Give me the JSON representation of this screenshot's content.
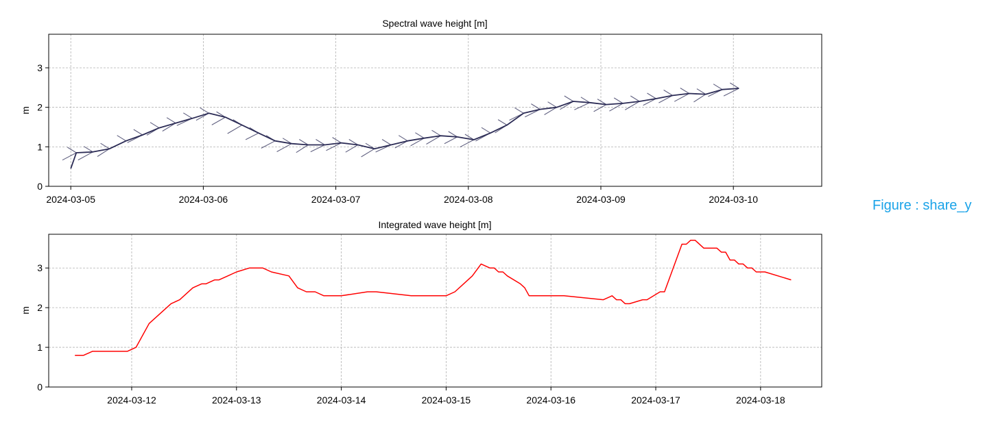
{
  "figure_label": "Figure : share_y",
  "colors": {
    "series_top": "#2b2b55",
    "series_bottom": "#ff0000",
    "label": "#1aa3e8",
    "grid": "#b0b0b0"
  },
  "chart_data": [
    {
      "type": "line",
      "title": "Spectral wave height [m]",
      "xlabel": "",
      "ylabel": "m",
      "ylim": [
        0,
        3.85
      ],
      "yticks": [
        0,
        1,
        2,
        3
      ],
      "xticks": [
        "2024-03-05",
        "2024-03-06",
        "2024-03-07",
        "2024-03-08",
        "2024-03-09",
        "2024-03-10"
      ],
      "xlim": [
        "2024-03-04 20:00",
        "2024-03-10 16:00"
      ],
      "grid": true,
      "markers": "direction arrows along the line",
      "series": [
        {
          "x": [
            "2024-03-05 00:00",
            "2024-03-05 01:00",
            "2024-03-05 04:00",
            "2024-03-05 07:00",
            "2024-03-05 10:00",
            "2024-03-05 13:00",
            "2024-03-05 16:00",
            "2024-03-05 19:00",
            "2024-03-05 22:00",
            "2024-03-06 01:00",
            "2024-03-06 04:00",
            "2024-03-06 07:00",
            "2024-03-06 10:00",
            "2024-03-06 13:00",
            "2024-03-06 16:00",
            "2024-03-06 19:00",
            "2024-03-06 22:00",
            "2024-03-07 01:00",
            "2024-03-07 04:00",
            "2024-03-07 07:00",
            "2024-03-07 10:00",
            "2024-03-07 13:00",
            "2024-03-07 16:00",
            "2024-03-07 19:00",
            "2024-03-07 22:00",
            "2024-03-08 01:00",
            "2024-03-08 04:00",
            "2024-03-08 07:00",
            "2024-03-08 10:00",
            "2024-03-08 13:00",
            "2024-03-08 16:00",
            "2024-03-08 19:00",
            "2024-03-08 22:00",
            "2024-03-09 01:00",
            "2024-03-09 04:00",
            "2024-03-09 07:00",
            "2024-03-09 10:00",
            "2024-03-09 13:00",
            "2024-03-09 16:00",
            "2024-03-09 19:00",
            "2024-03-09 22:00",
            "2024-03-10 01:00"
          ],
          "values": [
            0.45,
            0.85,
            0.87,
            0.95,
            1.15,
            1.3,
            1.48,
            1.6,
            1.72,
            1.85,
            1.75,
            1.55,
            1.35,
            1.15,
            1.08,
            1.05,
            1.05,
            1.1,
            1.05,
            0.95,
            1.05,
            1.15,
            1.22,
            1.28,
            1.25,
            1.18,
            1.35,
            1.55,
            1.85,
            1.95,
            2.0,
            2.15,
            2.12,
            2.07,
            2.1,
            2.15,
            2.22,
            2.3,
            2.35,
            2.33,
            2.45,
            2.48
          ]
        }
      ]
    },
    {
      "type": "line",
      "title": "Integrated wave height [m]",
      "xlabel": "",
      "ylabel": "m",
      "ylim": [
        0,
        3.85
      ],
      "yticks": [
        0,
        1,
        2,
        3
      ],
      "xticks": [
        "2024-03-12",
        "2024-03-13",
        "2024-03-14",
        "2024-03-15",
        "2024-03-16",
        "2024-03-17",
        "2024-03-18"
      ],
      "xlim": [
        "2024-03-11 05:00",
        "2024-03-18 14:00"
      ],
      "grid": true,
      "series": [
        {
          "x": [
            "2024-03-11 11:00",
            "2024-03-11 13:00",
            "2024-03-11 15:00",
            "2024-03-11 23:00",
            "2024-03-12 01:00",
            "2024-03-12 04:00",
            "2024-03-12 09:00",
            "2024-03-12 11:00",
            "2024-03-12 14:00",
            "2024-03-12 16:00",
            "2024-03-12 17:00",
            "2024-03-12 19:00",
            "2024-03-12 20:00",
            "2024-03-12 22:00",
            "2024-03-13 00:00",
            "2024-03-13 03:00",
            "2024-03-13 06:00",
            "2024-03-13 08:00",
            "2024-03-13 12:00",
            "2024-03-13 14:00",
            "2024-03-13 16:00",
            "2024-03-13 18:00",
            "2024-03-13 20:00",
            "2024-03-13 22:00",
            "2024-03-14 00:00",
            "2024-03-14 06:00",
            "2024-03-14 08:00",
            "2024-03-14 16:00",
            "2024-03-14 18:00",
            "2024-03-15 00:00",
            "2024-03-15 02:00",
            "2024-03-15 04:00",
            "2024-03-15 06:00",
            "2024-03-15 08:00",
            "2024-03-15 10:00",
            "2024-03-15 11:00",
            "2024-03-15 12:00",
            "2024-03-15 13:00",
            "2024-03-15 14:00",
            "2024-03-15 17:00",
            "2024-03-15 18:00",
            "2024-03-15 19:00",
            "2024-03-15 20:00",
            "2024-03-15 21:00",
            "2024-03-15 23:00",
            "2024-03-16 00:00",
            "2024-03-16 03:00",
            "2024-03-16 12:00",
            "2024-03-16 14:00",
            "2024-03-16 15:00",
            "2024-03-16 16:00",
            "2024-03-16 17:00",
            "2024-03-16 18:00",
            "2024-03-16 21:00",
            "2024-03-16 22:00",
            "2024-03-17 01:00",
            "2024-03-17 02:00",
            "2024-03-17 06:00",
            "2024-03-17 07:00",
            "2024-03-17 08:00",
            "2024-03-17 09:00",
            "2024-03-17 11:00",
            "2024-03-17 14:00",
            "2024-03-17 15:00",
            "2024-03-17 16:00",
            "2024-03-17 17:00",
            "2024-03-17 18:00",
            "2024-03-17 19:00",
            "2024-03-17 20:00",
            "2024-03-17 21:00",
            "2024-03-17 22:00",
            "2024-03-17 23:00",
            "2024-03-18 01:00",
            "2024-03-18 07:00"
          ],
          "values": [
            0.8,
            0.8,
            0.9,
            0.9,
            1.0,
            1.6,
            2.1,
            2.2,
            2.5,
            2.6,
            2.6,
            2.7,
            2.7,
            2.8,
            2.9,
            3.0,
            3.0,
            2.9,
            2.8,
            2.5,
            2.4,
            2.4,
            2.3,
            2.3,
            2.3,
            2.4,
            2.4,
            2.3,
            2.3,
            2.3,
            2.4,
            2.6,
            2.8,
            3.1,
            3.0,
            3.0,
            2.9,
            2.9,
            2.8,
            2.6,
            2.5,
            2.3,
            2.3,
            2.3,
            2.3,
            2.3,
            2.3,
            2.2,
            2.3,
            2.2,
            2.2,
            2.1,
            2.1,
            2.2,
            2.2,
            2.4,
            2.4,
            3.6,
            3.6,
            3.7,
            3.7,
            3.5,
            3.5,
            3.4,
            3.4,
            3.2,
            3.2,
            3.1,
            3.1,
            3.0,
            3.0,
            2.9,
            2.9,
            2.7
          ]
        }
      ]
    }
  ]
}
